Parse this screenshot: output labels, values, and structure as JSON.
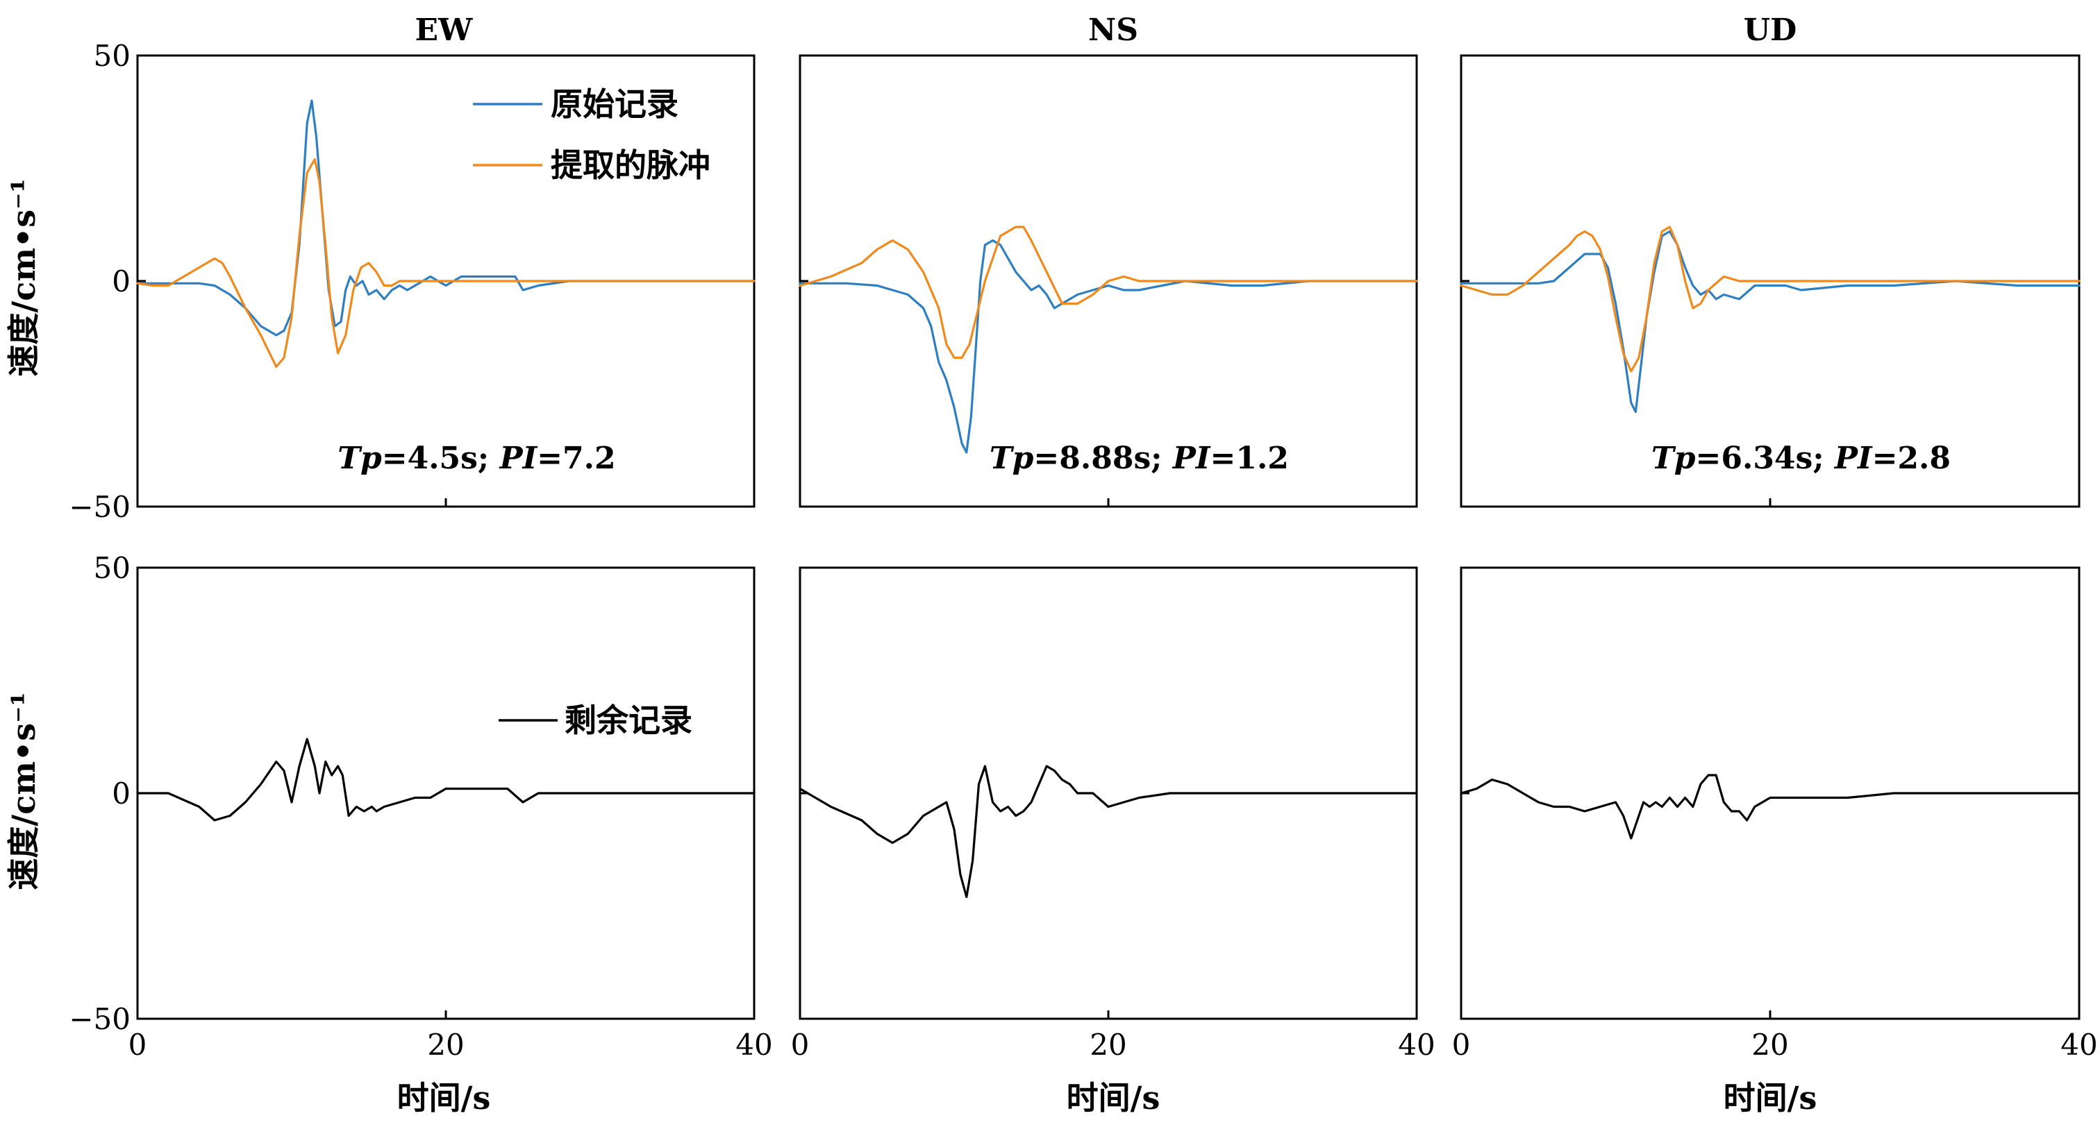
{
  "figure": {
    "column_titles": [
      "EW",
      "NS",
      "UD"
    ],
    "ylabel": "速度/cm•s⁻¹",
    "xlabel": "时间/s",
    "x_ticks": [
      "0",
      "20",
      "40"
    ],
    "y_ticks": [
      "50",
      "0",
      "−50"
    ]
  },
  "chart_data": [
    {
      "type": "line",
      "component": "EW",
      "row": "top",
      "title": "EW",
      "xlabel": "",
      "ylabel": "速度/cm•s⁻¹",
      "xlim": [
        0,
        40
      ],
      "ylim": [
        -50,
        50
      ],
      "annotation": {
        "tp_label": "Tp",
        "tp_value": "=4.5s; ",
        "pi_label": "PI",
        "pi_value": "=7.2"
      },
      "legend": {
        "position": "top-right"
      },
      "series": [
        {
          "name": "原始记录",
          "color": "#2E7FC2",
          "x": [
            0,
            4,
            5,
            6,
            7,
            8,
            9,
            9.5,
            10,
            10.5,
            11,
            11.3,
            11.6,
            12,
            12.4,
            12.8,
            13.2,
            13.5,
            13.8,
            14.2,
            14.6,
            15,
            15.5,
            16,
            16.5,
            17,
            17.5,
            18,
            19,
            20,
            21,
            22,
            23,
            24,
            24.5,
            25,
            26,
            28,
            30,
            34,
            36,
            38,
            40
          ],
          "y": [
            -0.5,
            -0.5,
            -1,
            -3,
            -6,
            -10,
            -12,
            -11,
            -7,
            8,
            35,
            40,
            32,
            15,
            -2,
            -10,
            -9,
            -2,
            1,
            -1,
            0,
            -3,
            -2,
            -4,
            -2,
            -1,
            -2,
            -1,
            1,
            -1,
            1,
            1,
            1,
            1,
            1,
            -2,
            -1,
            0,
            0,
            0,
            0,
            0,
            0
          ]
        },
        {
          "name": "提取的脉冲",
          "color": "#F08A1C",
          "x": [
            0,
            1,
            2,
            3,
            4,
            5,
            5.5,
            6,
            7,
            8,
            9,
            9.5,
            10,
            10.5,
            11,
            11.5,
            11.8,
            12.2,
            12.6,
            13,
            13.5,
            14,
            14.5,
            15,
            15.5,
            16,
            16.5,
            17,
            18,
            20,
            25,
            30,
            35,
            40
          ],
          "y": [
            -0.5,
            -1,
            -1,
            1,
            3,
            5,
            4,
            1,
            -6,
            -12,
            -19,
            -17,
            -8,
            10,
            24,
            27,
            22,
            8,
            -8,
            -16,
            -12,
            -2,
            3,
            4,
            2,
            -1,
            -1,
            0,
            0,
            0,
            0,
            0,
            0,
            0
          ]
        }
      ]
    },
    {
      "type": "line",
      "component": "NS",
      "row": "top",
      "title": "NS",
      "xlabel": "",
      "ylabel": "",
      "xlim": [
        0,
        40
      ],
      "ylim": [
        -50,
        50
      ],
      "annotation": {
        "tp_label": "Tp",
        "tp_value": "=8.88s; ",
        "pi_label": "PI",
        "pi_value": "=1.2"
      },
      "series": [
        {
          "name": "原始记录",
          "color": "#2E7FC2",
          "x": [
            0,
            3,
            5,
            6,
            7,
            8,
            8.5,
            9,
            9.5,
            10,
            10.5,
            10.8,
            11.1,
            11.4,
            11.7,
            12,
            12.5,
            13,
            13.5,
            14,
            15,
            15.5,
            16,
            16.5,
            17,
            17.5,
            18,
            19,
            20,
            21,
            22,
            25,
            28,
            30,
            33,
            36,
            40
          ],
          "y": [
            -0.5,
            -0.5,
            -1,
            -2,
            -3,
            -6,
            -10,
            -18,
            -22,
            -28,
            -36,
            -38,
            -30,
            -15,
            0,
            8,
            9,
            8,
            5,
            2,
            -2,
            -1,
            -3,
            -6,
            -5,
            -4,
            -3,
            -2,
            -1,
            -2,
            -2,
            0,
            -1,
            -1,
            0,
            0,
            0
          ]
        },
        {
          "name": "提取的脉冲",
          "color": "#F08A1C",
          "x": [
            0,
            2,
            4,
            5,
            6,
            7,
            8,
            9,
            9.5,
            10,
            10.5,
            11,
            12,
            13,
            14,
            14.5,
            15,
            16,
            17,
            18,
            19,
            20,
            21,
            22,
            25,
            30,
            35,
            40
          ],
          "y": [
            -1,
            1,
            4,
            7,
            9,
            7,
            2,
            -6,
            -14,
            -17,
            -17,
            -14,
            0,
            10,
            12,
            12,
            9,
            2,
            -5,
            -5,
            -3,
            0,
            1,
            0,
            0,
            0,
            0,
            0
          ]
        }
      ]
    },
    {
      "type": "line",
      "component": "UD",
      "row": "top",
      "title": "UD",
      "xlabel": "",
      "ylabel": "",
      "xlim": [
        0,
        40
      ],
      "ylim": [
        -50,
        50
      ],
      "annotation": {
        "tp_label": "Tp",
        "tp_value": "=6.34s; ",
        "pi_label": "PI",
        "pi_value": "=2.8"
      },
      "series": [
        {
          "name": "原始记录",
          "color": "#2E7FC2",
          "x": [
            0,
            3,
            5,
            6,
            7,
            8,
            9,
            9.5,
            10,
            10.5,
            11,
            11.3,
            11.6,
            12,
            12.5,
            13,
            13.5,
            14,
            14.5,
            15,
            15.5,
            16,
            16.5,
            17,
            18,
            19,
            20,
            21,
            22,
            25,
            28,
            32,
            36,
            40
          ],
          "y": [
            -0.5,
            -0.5,
            -0.5,
            0,
            3,
            6,
            6,
            3,
            -5,
            -15,
            -27,
            -29,
            -20,
            -8,
            2,
            10,
            11,
            8,
            3,
            -1,
            -3,
            -2,
            -4,
            -3,
            -4,
            -1,
            -1,
            -1,
            -2,
            -1,
            -1,
            0,
            -1,
            -1
          ]
        },
        {
          "name": "提取的脉冲",
          "color": "#F08A1C",
          "x": [
            0,
            1,
            2,
            3,
            4,
            5,
            6,
            7,
            7.5,
            8,
            8.5,
            9,
            9.5,
            10,
            10.5,
            11,
            11.5,
            12,
            12.5,
            13,
            13.5,
            14,
            14.5,
            15,
            15.5,
            16,
            17,
            18,
            20,
            25,
            30,
            35,
            40
          ],
          "y": [
            -1,
            -2,
            -3,
            -3,
            -1,
            2,
            5,
            8,
            10,
            11,
            10,
            7,
            1,
            -8,
            -16,
            -20,
            -17,
            -8,
            4,
            11,
            12,
            8,
            0,
            -6,
            -5,
            -2,
            1,
            0,
            0,
            0,
            0,
            0,
            0
          ]
        }
      ]
    },
    {
      "type": "line",
      "component": "EW",
      "row": "bottom",
      "title": "",
      "xlabel": "时间/s",
      "ylabel": "速度/cm•s⁻¹",
      "xlim": [
        0,
        40
      ],
      "ylim": [
        -50,
        50
      ],
      "legend": {
        "position": "center-right"
      },
      "series": [
        {
          "name": "剩余记录",
          "color": "#000000",
          "x": [
            0,
            2,
            4,
            5,
            6,
            7,
            8,
            9,
            9.5,
            10,
            10.5,
            11,
            11.5,
            11.8,
            12.2,
            12.6,
            13,
            13.3,
            13.7,
            14.2,
            14.7,
            15.2,
            15.5,
            16,
            17,
            18,
            19,
            20,
            21,
            22,
            23,
            24,
            25,
            25.5,
            26,
            28,
            30,
            34,
            38,
            40
          ],
          "y": [
            0,
            0,
            -3,
            -6,
            -5,
            -2,
            2,
            7,
            5,
            -2,
            6,
            12,
            6,
            0,
            7,
            4,
            6,
            4,
            -5,
            -3,
            -4,
            -3,
            -4,
            -3,
            -2,
            -1,
            -1,
            1,
            1,
            1,
            1,
            1,
            -2,
            -1,
            0,
            0,
            0,
            0,
            0,
            0
          ]
        }
      ]
    },
    {
      "type": "line",
      "component": "NS",
      "row": "bottom",
      "title": "",
      "xlabel": "时间/s",
      "ylabel": "",
      "xlim": [
        0,
        40
      ],
      "ylim": [
        -50,
        50
      ],
      "series": [
        {
          "name": "剩余记录",
          "color": "#000000",
          "x": [
            0,
            2,
            4,
            5,
            6,
            7,
            8,
            9,
            9.5,
            10,
            10.4,
            10.8,
            11.2,
            11.6,
            12,
            12.5,
            13,
            13.5,
            14,
            14.5,
            15,
            15.5,
            16,
            16.5,
            17,
            17.5,
            18,
            19,
            20,
            21,
            22,
            24,
            26,
            28,
            30,
            32,
            36,
            40
          ],
          "y": [
            1,
            -3,
            -6,
            -9,
            -11,
            -9,
            -5,
            -3,
            -2,
            -8,
            -18,
            -23,
            -15,
            2,
            6,
            -2,
            -4,
            -3,
            -5,
            -4,
            -2,
            2,
            6,
            5,
            3,
            2,
            0,
            0,
            -3,
            -2,
            -1,
            0,
            0,
            0,
            0,
            0,
            0,
            0
          ]
        }
      ]
    },
    {
      "type": "line",
      "component": "UD",
      "row": "bottom",
      "title": "",
      "xlabel": "时间/s",
      "ylabel": "",
      "xlim": [
        0,
        40
      ],
      "ylim": [
        -50,
        50
      ],
      "series": [
        {
          "name": "剩余记录",
          "color": "#000000",
          "x": [
            0,
            1,
            2,
            3,
            4,
            5,
            6,
            7,
            8,
            9,
            10,
            10.5,
            11,
            11.4,
            11.8,
            12.2,
            12.6,
            13,
            13.5,
            14,
            14.5,
            15,
            15.5,
            16,
            16.5,
            17,
            17.5,
            18,
            18.5,
            19,
            20,
            21,
            22,
            23,
            25,
            28,
            32,
            36,
            40
          ],
          "y": [
            0,
            1,
            3,
            2,
            0,
            -2,
            -3,
            -3,
            -4,
            -3,
            -2,
            -5,
            -10,
            -6,
            -2,
            -3,
            -2,
            -3,
            -1,
            -3,
            -1,
            -3,
            2,
            4,
            4,
            -2,
            -4,
            -4,
            -6,
            -3,
            -1,
            -1,
            -1,
            -1,
            -1,
            0,
            0,
            0,
            0
          ]
        }
      ]
    }
  ]
}
